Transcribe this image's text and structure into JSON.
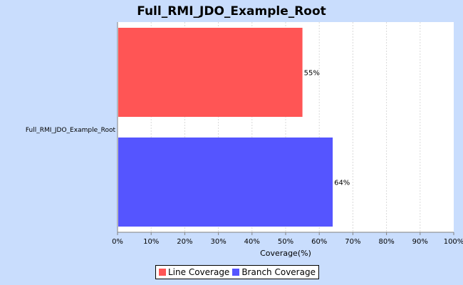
{
  "chart_data": {
    "type": "bar",
    "orientation": "horizontal",
    "title": "Full_RMI_JDO_Example_Root",
    "categories": [
      "Full_RMI_JDO_Example_Root"
    ],
    "series": [
      {
        "name": "Line Coverage",
        "values": [
          55
        ],
        "label": "55%",
        "color": "#ff5555"
      },
      {
        "name": "Branch Coverage",
        "values": [
          64
        ],
        "label": "64%",
        "color": "#5555ff"
      }
    ],
    "xlabel": "Coverage(%)",
    "ylabel": "",
    "xlim": [
      0,
      100
    ],
    "xticks": [
      "0%",
      "10%",
      "20%",
      "30%",
      "40%",
      "50%",
      "60%",
      "70%",
      "80%",
      "90%",
      "100%"
    ],
    "grid": true,
    "legend": "bottom-center"
  }
}
